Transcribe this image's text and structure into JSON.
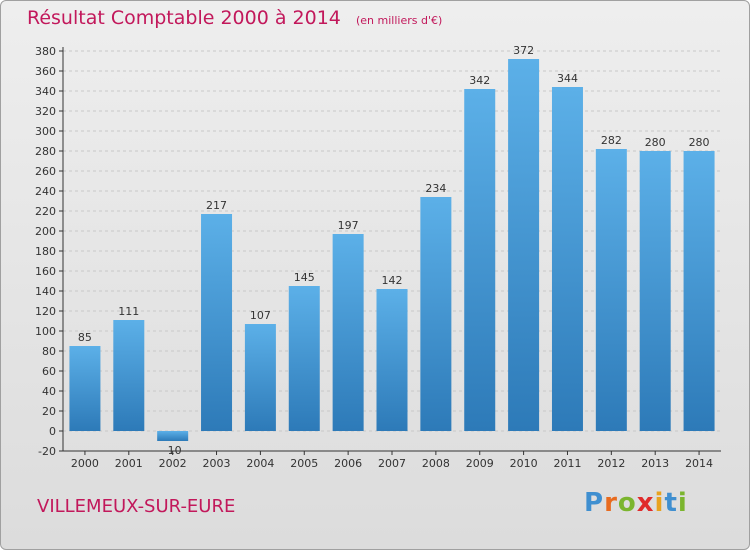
{
  "title": "Résultat Comptable 2000 à 2014",
  "subtitle": "(en milliers d'€)",
  "place": "VILLEMEUX-SUR-EURE",
  "brand": {
    "letters": [
      {
        "ch": "P",
        "color": "#3f8fd0"
      },
      {
        "ch": "r",
        "color": "#e86b1f"
      },
      {
        "ch": "o",
        "color": "#7bb52e"
      },
      {
        "ch": "x",
        "color": "#e02b2b"
      },
      {
        "ch": "i",
        "color": "#e8a21f"
      },
      {
        "ch": "t",
        "color": "#3f8fd0"
      },
      {
        "ch": "i",
        "color": "#7bb52e"
      }
    ]
  },
  "colors": {
    "bar_top": "#5cb0e8",
    "bar_bottom": "#2d7ab8",
    "grid": "#c8c8c8",
    "axis": "#333333",
    "text": "#333333"
  },
  "chart_data": {
    "type": "bar",
    "title": "Résultat Comptable 2000 à 2014",
    "subtitle": "(en milliers d'€)",
    "xlabel": "",
    "ylabel": "",
    "categories": [
      "2000",
      "2001",
      "2002",
      "2003",
      "2004",
      "2005",
      "2006",
      "2007",
      "2008",
      "2009",
      "2010",
      "2011",
      "2012",
      "2013",
      "2014"
    ],
    "values": [
      85,
      111,
      -10,
      217,
      107,
      145,
      197,
      142,
      234,
      342,
      372,
      344,
      282,
      280,
      280
    ],
    "ylim": [
      -20,
      380
    ],
    "yticks": [
      -20,
      0,
      20,
      40,
      60,
      80,
      100,
      120,
      140,
      160,
      180,
      200,
      220,
      240,
      260,
      280,
      300,
      320,
      340,
      360,
      380
    ],
    "grid": true,
    "legend": "none"
  }
}
